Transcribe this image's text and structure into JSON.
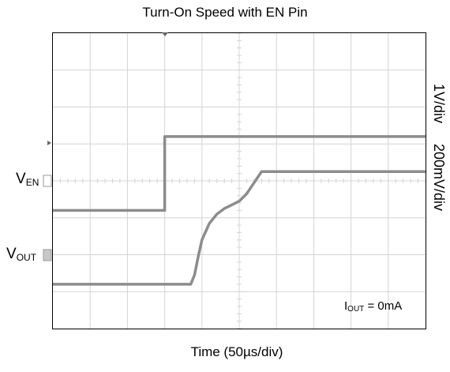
{
  "chart_data": {
    "type": "line",
    "title": "Turn-On Speed with EN Pin",
    "xlabel": "Time (50µs/div)",
    "x_divisions": 10,
    "y_divisions": 8,
    "grid": true,
    "annotation": {
      "text_main": "I",
      "text_sub": "OUT",
      "text_rest": " = 0mA"
    },
    "series": [
      {
        "name_main": "V",
        "name_sub": "EN",
        "scale": "1V/div",
        "color": "#8c8c8c",
        "x_div": [
          0,
          3.0,
          3.0,
          10
        ],
        "y_div": [
          3.2,
          3.2,
          5.2,
          5.2
        ]
      },
      {
        "name_main": "V",
        "name_sub": "OUT",
        "scale": "200mV/div",
        "color": "#8c8c8c",
        "x_div": [
          0,
          3.7,
          3.8,
          3.9,
          4.0,
          4.2,
          4.4,
          4.6,
          4.8,
          5.0,
          5.2,
          5.4,
          5.6,
          6.0,
          7.0,
          10
        ],
        "y_div": [
          1.2,
          1.2,
          1.45,
          1.95,
          2.4,
          2.85,
          3.1,
          3.25,
          3.35,
          3.45,
          3.65,
          3.95,
          4.25,
          4.25,
          4.25,
          4.25
        ]
      }
    ]
  }
}
